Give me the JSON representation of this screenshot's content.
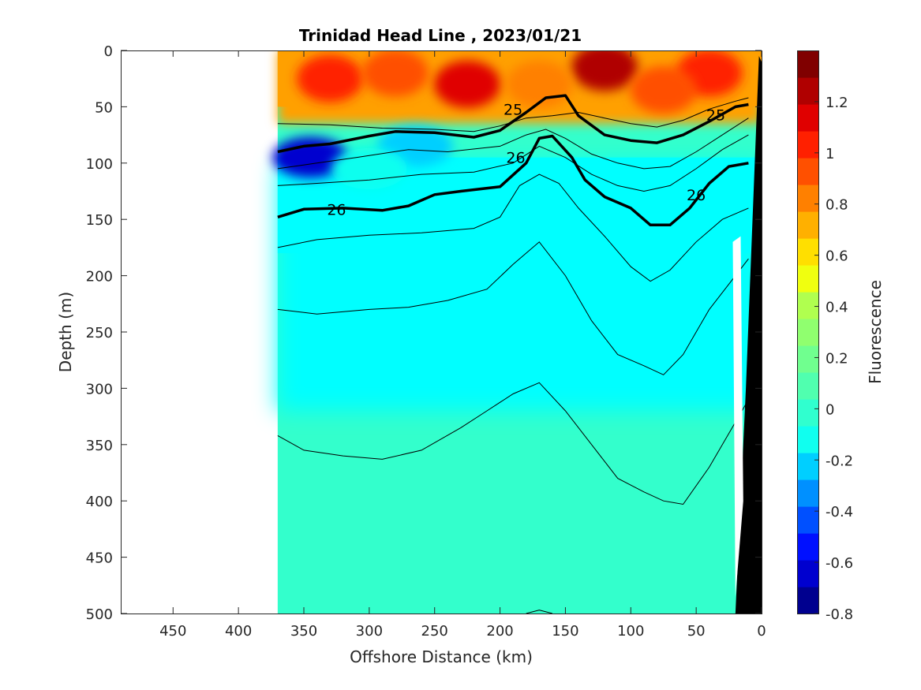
{
  "chart_data": {
    "type": "heatmap",
    "title": "Trinidad Head Line , 2023/01/21",
    "xlabel": "Offshore Distance (km)",
    "ylabel": "Depth (m)",
    "colorbar_label": "Fluorescence",
    "xlim": [
      490,
      0
    ],
    "ylim": [
      0,
      500
    ],
    "x_reversed": true,
    "y_reversed": true,
    "xticks": [
      450,
      400,
      350,
      300,
      250,
      200,
      150,
      100,
      50,
      0
    ],
    "yticks": [
      0,
      50,
      100,
      150,
      200,
      250,
      300,
      350,
      400,
      450,
      500
    ],
    "clim": [
      -0.8,
      1.4
    ],
    "colorbar_ticks": [
      1.2,
      1,
      0.8,
      0.6,
      0.4,
      0.2,
      0,
      -0.2,
      -0.4,
      -0.6,
      -0.8
    ],
    "data_extent_x": [
      370,
      0
    ],
    "colormap": [
      "#00008f",
      "#0000cf",
      "#0010ff",
      "#0050ff",
      "#0090ff",
      "#00cfff",
      "#10ffef",
      "#30ffcf",
      "#50ffaf",
      "#70ff8f",
      "#90ff6f",
      "#b0ff4f",
      "#f0ff0f",
      "#ffdf00",
      "#ffb000",
      "#ff8000",
      "#ff5000",
      "#ff2000",
      "#e00000",
      "#b00000",
      "#800000"
    ],
    "colors": {
      "surface_high": "#ff2a00",
      "surface_mid": "#ffa000",
      "subsurface": "#00ffff",
      "deep": "#33ffcc",
      "low": "#1a3aff",
      "bathymetry": "#000000"
    },
    "fluorescence_blobs": [
      {
        "x": 225,
        "y": 30,
        "level": 1.15
      },
      {
        "x": 330,
        "y": 25,
        "level": 1.05
      },
      {
        "x": 120,
        "y": 15,
        "level": 1.2
      },
      {
        "x": 40,
        "y": 20,
        "level": 1.0
      },
      {
        "x": 280,
        "y": 20,
        "level": 0.9
      },
      {
        "x": 170,
        "y": 30,
        "level": 0.8
      },
      {
        "x": 75,
        "y": 35,
        "level": 0.9
      },
      {
        "x": 345,
        "y": 95,
        "level": -0.6
      },
      {
        "x": 265,
        "y": 85,
        "level": -0.2
      },
      {
        "x": 300,
        "y": 105,
        "level": -0.1
      }
    ],
    "contours_bold": [
      {
        "label": "25",
        "points": [
          [
            370,
            90
          ],
          [
            350,
            85
          ],
          [
            330,
            83
          ],
          [
            300,
            76
          ],
          [
            280,
            72
          ],
          [
            250,
            73
          ],
          [
            220,
            77
          ],
          [
            200,
            71
          ],
          [
            180,
            55
          ],
          [
            165,
            42
          ],
          [
            150,
            40
          ],
          [
            140,
            58
          ],
          [
            120,
            75
          ],
          [
            100,
            80
          ],
          [
            80,
            82
          ],
          [
            60,
            75
          ],
          [
            40,
            63
          ],
          [
            20,
            50
          ],
          [
            10,
            48
          ]
        ],
        "labels_at": [
          [
            190,
            52
          ],
          [
            35,
            57
          ]
        ]
      },
      {
        "label": "26",
        "points": [
          [
            370,
            148
          ],
          [
            350,
            141
          ],
          [
            320,
            140
          ],
          [
            290,
            142
          ],
          [
            270,
            138
          ],
          [
            250,
            128
          ],
          [
            230,
            125
          ],
          [
            200,
            121
          ],
          [
            180,
            100
          ],
          [
            170,
            78
          ],
          [
            160,
            76
          ],
          [
            145,
            95
          ],
          [
            135,
            115
          ],
          [
            120,
            130
          ],
          [
            100,
            140
          ],
          [
            85,
            155
          ],
          [
            70,
            155
          ],
          [
            55,
            140
          ],
          [
            40,
            118
          ],
          [
            25,
            103
          ],
          [
            10,
            100
          ]
        ],
        "labels_at": [
          [
            325,
            141
          ],
          [
            188,
            95
          ],
          [
            50,
            128
          ]
        ]
      }
    ],
    "contours_thin": [
      [
        [
          370,
          65
        ],
        [
          330,
          66
        ],
        [
          290,
          69
        ],
        [
          250,
          70
        ],
        [
          220,
          72
        ],
        [
          200,
          67
        ],
        [
          180,
          60
        ],
        [
          160,
          58
        ],
        [
          140,
          55
        ],
        [
          120,
          60
        ],
        [
          100,
          65
        ],
        [
          80,
          68
        ],
        [
          60,
          62
        ],
        [
          40,
          52
        ],
        [
          20,
          45
        ],
        [
          10,
          42
        ]
      ],
      [
        [
          370,
          105
        ],
        [
          340,
          100
        ],
        [
          310,
          95
        ],
        [
          270,
          88
        ],
        [
          240,
          90
        ],
        [
          200,
          85
        ],
        [
          180,
          75
        ],
        [
          165,
          70
        ],
        [
          150,
          78
        ],
        [
          130,
          92
        ],
        [
          110,
          100
        ],
        [
          90,
          105
        ],
        [
          70,
          103
        ],
        [
          50,
          90
        ],
        [
          30,
          75
        ],
        [
          10,
          60
        ]
      ],
      [
        [
          370,
          120
        ],
        [
          340,
          118
        ],
        [
          300,
          115
        ],
        [
          260,
          110
        ],
        [
          220,
          108
        ],
        [
          190,
          100
        ],
        [
          170,
          85
        ],
        [
          150,
          95
        ],
        [
          130,
          110
        ],
        [
          110,
          120
        ],
        [
          90,
          125
        ],
        [
          70,
          120
        ],
        [
          50,
          105
        ],
        [
          30,
          88
        ],
        [
          10,
          75
        ]
      ],
      [
        [
          370,
          175
        ],
        [
          340,
          168
        ],
        [
          300,
          164
        ],
        [
          260,
          162
        ],
        [
          220,
          158
        ],
        [
          200,
          148
        ],
        [
          185,
          120
        ],
        [
          170,
          110
        ],
        [
          155,
          118
        ],
        [
          140,
          140
        ],
        [
          120,
          165
        ],
        [
          100,
          192
        ],
        [
          85,
          205
        ],
        [
          70,
          195
        ],
        [
          50,
          170
        ],
        [
          30,
          150
        ],
        [
          10,
          140
        ]
      ],
      [
        [
          370,
          230
        ],
        [
          340,
          234
        ],
        [
          300,
          230
        ],
        [
          270,
          228
        ],
        [
          240,
          222
        ],
        [
          210,
          212
        ],
        [
          190,
          190
        ],
        [
          170,
          170
        ],
        [
          150,
          200
        ],
        [
          130,
          240
        ],
        [
          110,
          270
        ],
        [
          90,
          280
        ],
        [
          75,
          288
        ],
        [
          60,
          270
        ],
        [
          40,
          230
        ],
        [
          20,
          200
        ],
        [
          10,
          185
        ]
      ],
      [
        [
          370,
          342
        ],
        [
          350,
          355
        ],
        [
          320,
          360
        ],
        [
          290,
          363
        ],
        [
          260,
          355
        ],
        [
          230,
          335
        ],
        [
          210,
          320
        ],
        [
          190,
          305
        ],
        [
          170,
          295
        ],
        [
          150,
          320
        ],
        [
          130,
          350
        ],
        [
          110,
          380
        ],
        [
          90,
          392
        ],
        [
          75,
          400
        ],
        [
          60,
          403
        ],
        [
          40,
          370
        ],
        [
          20,
          330
        ],
        [
          10,
          310
        ]
      ],
      [
        [
          180,
          500
        ],
        [
          170,
          497
        ],
        [
          160,
          500
        ]
      ]
    ],
    "bathymetry_polygon": [
      [
        25,
        500
      ],
      [
        0,
        500
      ],
      [
        0,
        10
      ],
      [
        2,
        5
      ],
      [
        12,
        300
      ],
      [
        20,
        500
      ]
    ],
    "white_gap_polygon": [
      [
        22,
        170
      ],
      [
        16,
        165
      ],
      [
        14,
        400
      ],
      [
        20,
        485
      ]
    ]
  }
}
